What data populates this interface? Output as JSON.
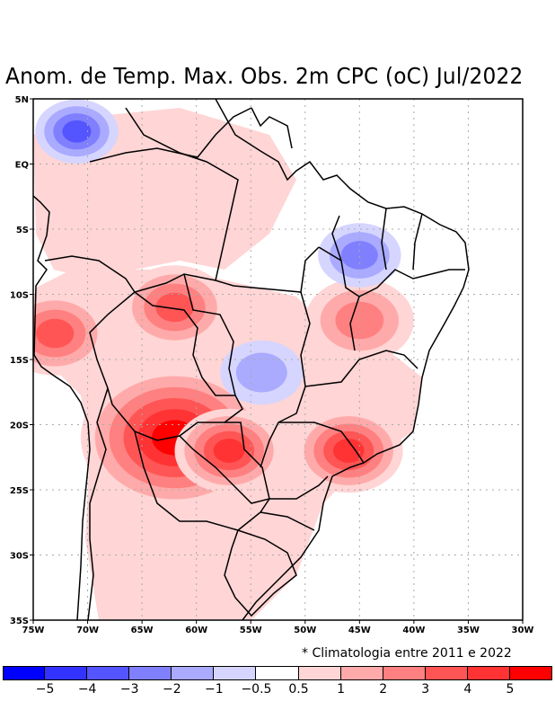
{
  "title": "Anom. de Temp. Max. Obs. 2m CPC (oC) Jul/2022",
  "note": "* Climatologia entre 2011 e 2022",
  "map": {
    "type": "contour-fill",
    "variable": "Maximum temperature anomaly at 2 m (°C)",
    "region": "South America / Brazil",
    "lon_range": [
      -75,
      -30
    ],
    "lat_range": [
      -35,
      5
    ],
    "lon_ticks": [
      "75W",
      "70W",
      "65W",
      "60W",
      "55W",
      "50W",
      "45W",
      "40W",
      "35W",
      "30W"
    ],
    "lat_ticks": [
      "5N",
      "EQ",
      "5S",
      "10S",
      "15S",
      "20S",
      "25S",
      "30S",
      "35S"
    ],
    "grid": true,
    "highlights": [
      {
        "name": "strong-warm-center-chaco-paraguay",
        "lon": -62,
        "lat": -21,
        "value": 5
      },
      {
        "name": "warm-center-mato-grosso-do-sul",
        "lon": -57,
        "lat": -22,
        "value": 4
      },
      {
        "name": "warm-center-rondonia",
        "lon": -62,
        "lat": -11,
        "value": 3
      },
      {
        "name": "warm-peru",
        "lon": -73,
        "lat": -13,
        "value": 3
      },
      {
        "name": "warm-sao-paulo",
        "lon": -46,
        "lat": -22,
        "value": 4
      },
      {
        "name": "warm-bahia",
        "lon": -45,
        "lat": -12,
        "value": 2
      },
      {
        "name": "cool-maranhao-piaui",
        "lon": -45,
        "lat": -7,
        "value": -2
      },
      {
        "name": "cool-colombia",
        "lon": -71,
        "lat": 2.5,
        "value": -3
      },
      {
        "name": "cool-goias",
        "lon": -54,
        "lat": -16,
        "value": -1
      }
    ]
  },
  "colorbar": {
    "colors": [
      "#0000ff",
      "#3333ff",
      "#5555ff",
      "#8080ff",
      "#aaaaff",
      "#d5d5ff",
      "#ffffff",
      "#ffd5d5",
      "#ffaaaa",
      "#ff8080",
      "#ff5555",
      "#ff3333",
      "#ff0000"
    ],
    "labels": [
      "-5",
      "-4",
      "-3",
      "-2",
      "-1",
      "-0.5",
      "0.5",
      "1",
      "2",
      "3",
      "4",
      "5"
    ]
  }
}
